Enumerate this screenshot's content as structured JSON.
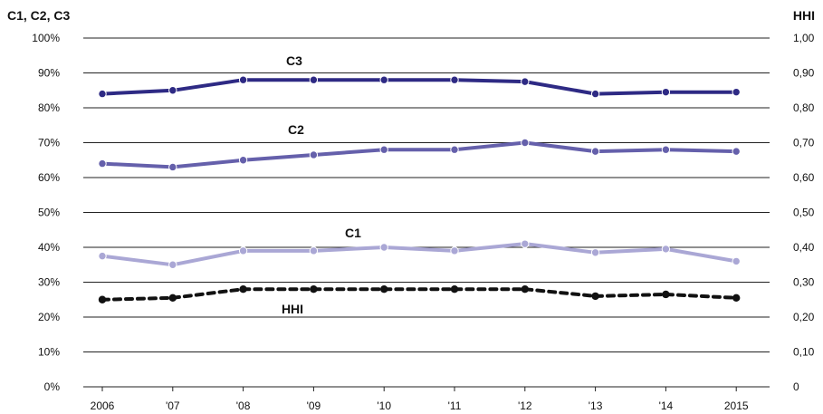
{
  "chart_data": {
    "type": "line",
    "left_axis_title": "C1, C2, C3",
    "right_axis_title": "HHI",
    "categories": [
      "2006",
      "'07",
      "'08",
      "'09",
      "'10",
      "'11",
      "'12",
      "'13",
      "'14",
      "2015"
    ],
    "left_ticks": [
      "0%",
      "10%",
      "20%",
      "30%",
      "40%",
      "50%",
      "60%",
      "70%",
      "80%",
      "90%",
      "100%"
    ],
    "right_ticks": [
      "0",
      "0,10",
      "0,20",
      "0,30",
      "0,40",
      "0,50",
      "0,60",
      "0,70",
      "0,80",
      "0,90",
      "1,00"
    ],
    "ylim": [
      0,
      100
    ],
    "grid": true,
    "series": [
      {
        "name": "C3",
        "axis": "left",
        "color": "#2e2a84",
        "dashed": false,
        "values": [
          84,
          85,
          88,
          88,
          88,
          88,
          87.5,
          84,
          84.5,
          84.5
        ]
      },
      {
        "name": "C2",
        "axis": "left",
        "color": "#6560ab",
        "dashed": false,
        "values": [
          64,
          63,
          65,
          66.5,
          68,
          68,
          70,
          67.5,
          68,
          67.5
        ]
      },
      {
        "name": "C1",
        "axis": "left",
        "color": "#aaa7d5",
        "dashed": false,
        "values": [
          37.5,
          35,
          39,
          39,
          40,
          39,
          41,
          38.5,
          39.5,
          36
        ]
      },
      {
        "name": "HHI",
        "axis": "right",
        "color": "#111111",
        "dashed": true,
        "values": [
          0.25,
          0.255,
          0.28,
          0.28,
          0.28,
          0.28,
          0.28,
          0.26,
          0.265,
          0.255
        ]
      }
    ]
  }
}
